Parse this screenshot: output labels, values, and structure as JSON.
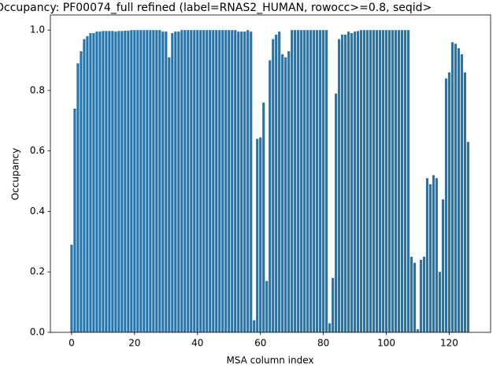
{
  "chart_data": {
    "type": "bar",
    "title": "Occupancy: PF00074_full refined (label=RNAS2_HUMAN, rowocc>=0.8, seqid>",
    "xlabel": "MSA column index",
    "ylabel": "Occupancy",
    "color": "#1f77b4",
    "x": [
      0,
      1,
      2,
      3,
      4,
      5,
      6,
      7,
      8,
      9,
      10,
      11,
      12,
      13,
      14,
      15,
      16,
      17,
      18,
      19,
      20,
      21,
      22,
      23,
      24,
      25,
      26,
      27,
      28,
      29,
      30,
      31,
      32,
      33,
      34,
      35,
      36,
      37,
      38,
      39,
      40,
      41,
      42,
      43,
      44,
      45,
      46,
      47,
      48,
      49,
      50,
      51,
      52,
      53,
      54,
      55,
      56,
      57,
      58,
      59,
      60,
      61,
      62,
      63,
      64,
      65,
      66,
      67,
      68,
      69,
      70,
      71,
      72,
      73,
      74,
      75,
      76,
      77,
      78,
      79,
      80,
      81,
      82,
      83,
      84,
      85,
      86,
      87,
      88,
      89,
      90,
      91,
      92,
      93,
      94,
      95,
      96,
      97,
      98,
      99,
      100,
      101,
      102,
      103,
      104,
      105,
      106,
      107,
      108,
      109,
      110,
      111,
      112,
      113,
      114,
      115,
      116,
      117,
      118,
      119,
      120,
      121,
      122,
      123,
      124,
      125,
      126
    ],
    "values": [
      0.29,
      0.74,
      0.89,
      0.93,
      0.97,
      0.98,
      0.99,
      0.99,
      0.995,
      0.995,
      0.997,
      0.997,
      0.997,
      0.997,
      0.995,
      0.997,
      0.997,
      0.998,
      0.998,
      1.0,
      1.0,
      1.0,
      1.0,
      1.0,
      1.0,
      1.0,
      1.0,
      1.0,
      1.0,
      0.995,
      0.995,
      0.91,
      0.99,
      0.995,
      0.995,
      1.0,
      1.0,
      1.0,
      1.0,
      1.0,
      1.0,
      1.0,
      1.0,
      1.0,
      1.0,
      1.0,
      1.0,
      1.0,
      1.0,
      1.0,
      1.0,
      1.0,
      1.0,
      0.995,
      0.995,
      0.995,
      1.0,
      0.995,
      0.04,
      0.64,
      0.645,
      0.76,
      0.17,
      0.9,
      0.97,
      0.985,
      0.995,
      0.92,
      0.91,
      0.93,
      1.0,
      1.0,
      1.0,
      1.0,
      1.0,
      1.0,
      1.0,
      1.0,
      1.0,
      1.0,
      1.0,
      1.0,
      0.03,
      0.18,
      0.79,
      0.97,
      0.985,
      0.985,
      0.995,
      0.99,
      0.995,
      0.997,
      1.0,
      1.0,
      1.0,
      1.0,
      1.0,
      1.0,
      1.0,
      1.0,
      1.0,
      1.0,
      1.0,
      1.0,
      1.0,
      1.0,
      1.0,
      1.0,
      0.25,
      0.23,
      0.01,
      0.24,
      0.25,
      0.51,
      0.49,
      0.52,
      0.51,
      0.2,
      0.44,
      0.84,
      0.86,
      0.96,
      0.955,
      0.94,
      0.92,
      0.86,
      0.63
    ],
    "bar_width": 0.8,
    "xlim": [
      -6.74,
      133.14
    ],
    "xticks": [
      0,
      20,
      40,
      60,
      80,
      100,
      120
    ],
    "ylim": [
      0,
      1.05
    ],
    "yticks": [
      {
        "value": 0,
        "label": "0.0"
      },
      {
        "value": 0.2,
        "label": "0.2"
      },
      {
        "value": 0.4,
        "label": "0.4"
      },
      {
        "value": 0.6,
        "label": "0.6"
      },
      {
        "value": 0.8,
        "label": "0.8"
      },
      {
        "value": 1.0,
        "label": "1.0"
      }
    ]
  }
}
